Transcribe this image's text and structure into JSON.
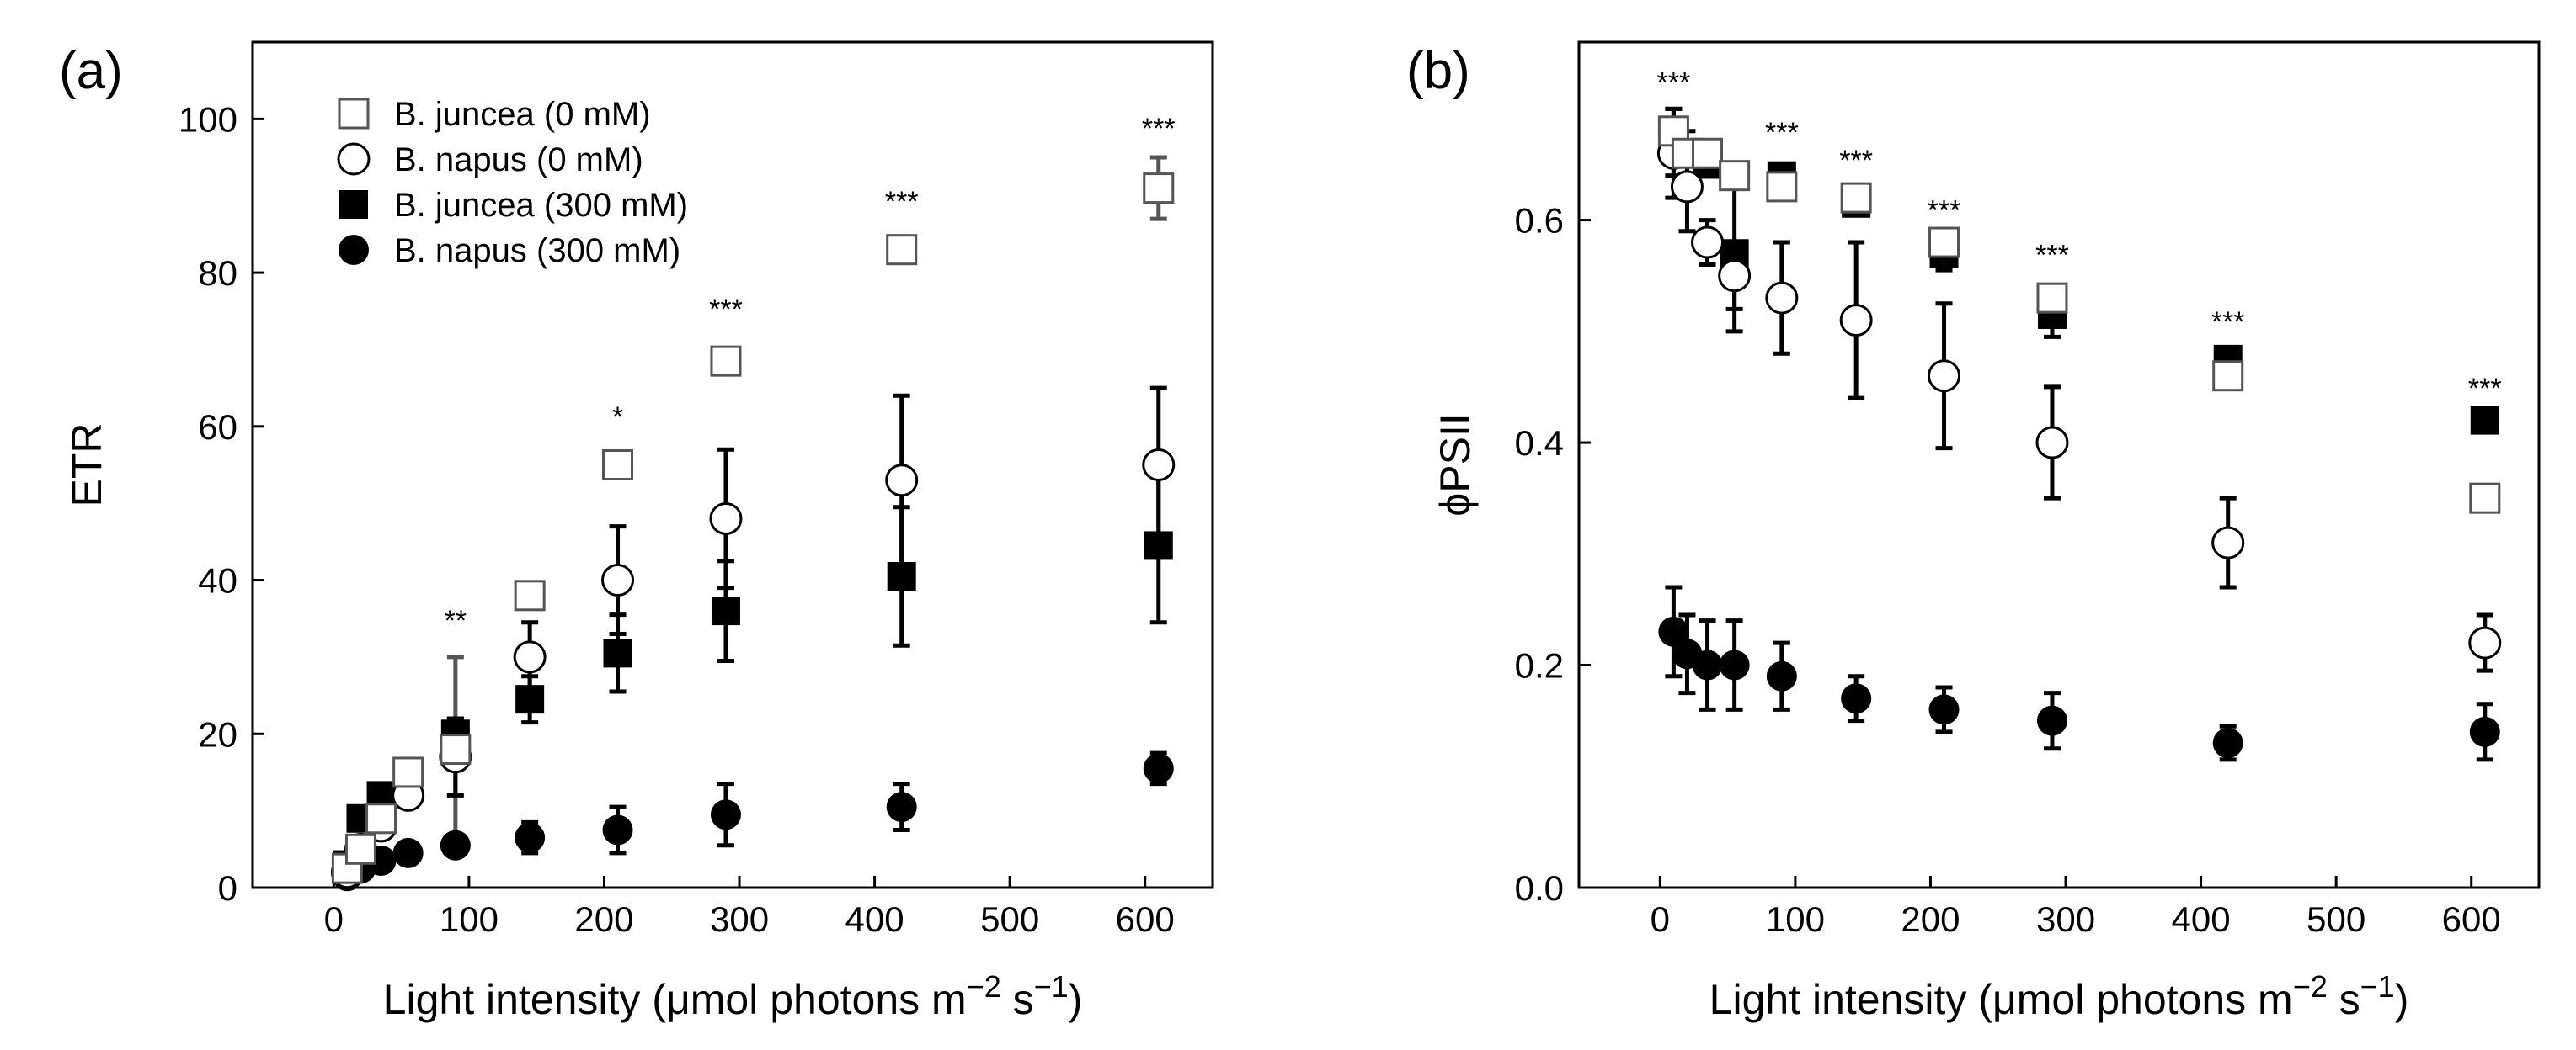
{
  "chart_data": [
    {
      "type": "scatter",
      "panel_label": "(a)",
      "ylabel": "ETR",
      "xlabel": {
        "prefix": "Light intensity (",
        "unit": "μmol photons m",
        "sup1": "−2",
        "mid": " s",
        "sup2": "−1",
        "suffix": ")"
      },
      "xlim": [
        -60,
        650
      ],
      "ylim": [
        0,
        110
      ],
      "xticks": [
        "0",
        "100",
        "200",
        "300",
        "400",
        "500",
        "600"
      ],
      "yticks": [
        "0",
        "20",
        "40",
        "60",
        "80",
        "100"
      ],
      "legend": {
        "position": "top-left",
        "entries": [
          {
            "series": 0,
            "label": "B. juncea (0 mM)"
          },
          {
            "series": 1,
            "label": "B. napus (0 mM)"
          },
          {
            "series": 2,
            "label": "B. juncea (300 mM)"
          },
          {
            "series": 3,
            "label": "B. napus (300 mM)"
          }
        ]
      },
      "series": [
        {
          "name": "B. juncea (0 mM)",
          "marker": "square-open",
          "color": "#555555",
          "x": [
            10,
            20,
            35,
            55,
            90,
            145,
            210,
            290,
            420,
            610
          ],
          "y": [
            2.5,
            5,
            9,
            15,
            18,
            38,
            55,
            68.5,
            83,
            91
          ],
          "err": [
            0.5,
            0.5,
            0.5,
            0.5,
            1.5,
            0.5,
            1.5,
            1.5,
            1,
            4
          ]
        },
        {
          "name": "B. napus (0 mM)",
          "marker": "circle-open",
          "color": "#000000",
          "x": [
            10,
            20,
            35,
            55,
            90,
            145,
            210,
            290,
            420,
            610
          ],
          "y": [
            2,
            5,
            8,
            12,
            17,
            30,
            40,
            48,
            53,
            55
          ],
          "err": [
            0.5,
            0.5,
            1,
            1,
            5,
            4.5,
            7,
            9,
            11,
            10
          ]
        },
        {
          "name": "B. juncea (300 mM)",
          "marker": "square-filled",
          "color": "#000000",
          "x": [
            10,
            20,
            35,
            55,
            90,
            145,
            210,
            290,
            420,
            610
          ],
          "y": [
            3,
            9,
            12,
            15,
            20,
            24.5,
            30.5,
            36,
            40.5,
            44.5
          ],
          "err": [
            0.5,
            0.5,
            0.5,
            0.5,
            2,
            3,
            5,
            6.5,
            9,
            10
          ]
        },
        {
          "name": "B. napus (300 mM)",
          "marker": "circle-filled",
          "color": "#000000",
          "x": [
            10,
            20,
            35,
            55,
            90,
            145,
            210,
            290,
            420,
            610
          ],
          "y": [
            1.5,
            2.5,
            3.5,
            4.5,
            5.5,
            6.5,
            7.5,
            9.5,
            10.5,
            15.5
          ],
          "err": [
            0.5,
            0.5,
            0.5,
            0.5,
            0.5,
            2,
            3,
            4,
            3,
            2
          ]
        }
      ],
      "gray_error_bars": [
        {
          "x": 90,
          "top": 30,
          "bottom": 5
        }
      ],
      "significance": [
        {
          "x": 90,
          "y": 33.5,
          "text": "**"
        },
        {
          "x": 210,
          "y": 60,
          "text": "*"
        },
        {
          "x": 290,
          "y": 74,
          "text": "***"
        },
        {
          "x": 420,
          "y": 88,
          "text": "***"
        },
        {
          "x": 610,
          "y": 97.5,
          "text": "***"
        }
      ]
    },
    {
      "type": "scatter",
      "panel_label": "(b)",
      "ylabel": "ϕPSII",
      "xlabel": {
        "prefix": "Light intensity (",
        "unit": "μmol photons m",
        "sup1": "−2",
        "mid": " s",
        "sup2": "−1",
        "suffix": ")"
      },
      "xlim": [
        -60,
        650
      ],
      "ylim": [
        0,
        0.76
      ],
      "xticks": [
        "0",
        "100",
        "200",
        "300",
        "400",
        "500",
        "600"
      ],
      "yticks": [
        "0.0",
        "0.2",
        "0.4",
        "0.6"
      ],
      "series": [
        {
          "name": "B. juncea (0 mM)",
          "marker": "square-open",
          "color": "#555555",
          "x": [
            10,
            20,
            35,
            55,
            90,
            145,
            210,
            290,
            420,
            610
          ],
          "y": [
            0.68,
            0.66,
            0.66,
            0.64,
            0.63,
            0.62,
            0.58,
            0.53,
            0.46,
            0.35
          ],
          "err": [
            0.01,
            0.01,
            0.01,
            0.01,
            0.01,
            0.01,
            0.01,
            0.01,
            0.01,
            0.01
          ]
        },
        {
          "name": "B. napus (0 mM)",
          "marker": "circle-open",
          "color": "#000000",
          "x": [
            10,
            20,
            35,
            55,
            90,
            145,
            210,
            290,
            420,
            610
          ],
          "y": [
            0.66,
            0.63,
            0.58,
            0.55,
            0.53,
            0.51,
            0.46,
            0.4,
            0.31,
            0.22
          ],
          "err": [
            0.04,
            0.04,
            0.02,
            0.03,
            0.05,
            0.07,
            0.065,
            0.05,
            0.04,
            0.025
          ]
        },
        {
          "name": "B. juncea (300 mM)",
          "marker": "square-filled",
          "color": "#000000",
          "x": [
            10,
            20,
            35,
            55,
            90,
            145,
            210,
            290,
            420,
            610
          ],
          "y": [
            0.67,
            0.66,
            0.65,
            0.57,
            0.64,
            0.615,
            0.57,
            0.515,
            0.475,
            0.42
          ],
          "err": [
            0.03,
            0.02,
            0.01,
            0.07,
            0.01,
            0.01,
            0.015,
            0.02,
            0.01,
            0.01
          ]
        },
        {
          "name": "B. napus (300 mM)",
          "marker": "circle-filled",
          "color": "#000000",
          "x": [
            10,
            20,
            35,
            55,
            90,
            145,
            210,
            290,
            420,
            610
          ],
          "y": [
            0.23,
            0.21,
            0.2,
            0.2,
            0.19,
            0.17,
            0.16,
            0.15,
            0.13,
            0.14
          ],
          "err": [
            0.04,
            0.035,
            0.04,
            0.04,
            0.03,
            0.02,
            0.02,
            0.025,
            0.015,
            0.025
          ]
        }
      ],
      "significance": [
        {
          "x": 10,
          "y": 0.715,
          "text": "***"
        },
        {
          "x": 90,
          "y": 0.67,
          "text": "***"
        },
        {
          "x": 145,
          "y": 0.645,
          "text": "***"
        },
        {
          "x": 210,
          "y": 0.6,
          "text": "***"
        },
        {
          "x": 290,
          "y": 0.56,
          "text": "***"
        },
        {
          "x": 420,
          "y": 0.5,
          "text": "***"
        },
        {
          "x": 610,
          "y": 0.44,
          "text": "***"
        }
      ]
    }
  ]
}
